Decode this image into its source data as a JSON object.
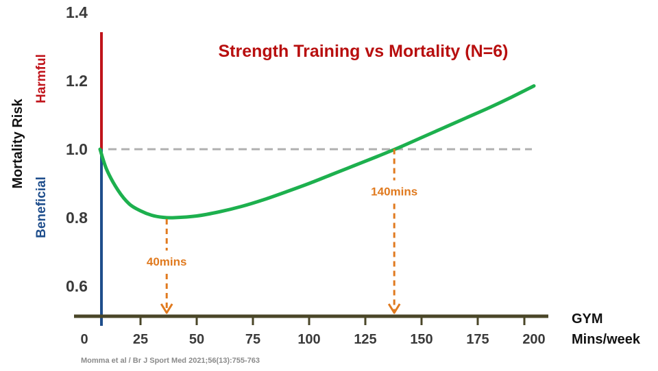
{
  "chart_data": {
    "type": "line",
    "title": "Strength Training vs Mortality (N=6)",
    "ylabel": "Mortality Risk",
    "xlabel_lines": [
      "GYM",
      "Mins/week"
    ],
    "zone_labels": {
      "harmful": "Harmful",
      "beneficial": "Beneficial"
    },
    "xlim": [
      0,
      200
    ],
    "ylim": [
      0.6,
      1.4
    ],
    "x_ticks": [
      0,
      25,
      50,
      75,
      100,
      125,
      150,
      175,
      200
    ],
    "y_ticks": [
      "0.6",
      "0.8",
      "1.0",
      "1.2",
      "1.4"
    ],
    "reference_line": {
      "y": 1.0
    },
    "series": [
      {
        "x": [
          7,
          10,
          15,
          20,
          25,
          30,
          35,
          40,
          50,
          60,
          70,
          80,
          90,
          100,
          110,
          120,
          130,
          140,
          150,
          160,
          170,
          180,
          190,
          200
        ],
        "y": [
          1.0,
          0.94,
          0.88,
          0.84,
          0.82,
          0.807,
          0.801,
          0.8,
          0.805,
          0.817,
          0.833,
          0.853,
          0.876,
          0.9,
          0.926,
          0.952,
          0.978,
          1.005,
          1.034,
          1.063,
          1.092,
          1.121,
          1.152,
          1.185
        ]
      }
    ],
    "annotations": [
      {
        "x": 40,
        "y": 0.8,
        "label": "40mins"
      },
      {
        "x": 140,
        "y": 1.005,
        "label": "140mins"
      }
    ],
    "colors": {
      "curve": "#1db04e",
      "reference": "#b0b0b0",
      "harmful": "#c0141b",
      "beneficial": "#1f4e8c",
      "x_axis": "#4a4628",
      "annotation": "#e07a1f",
      "title": "#b80f0f"
    }
  },
  "citation": "Momma et al / Br J Sport Med 2021;56(13):755-763"
}
